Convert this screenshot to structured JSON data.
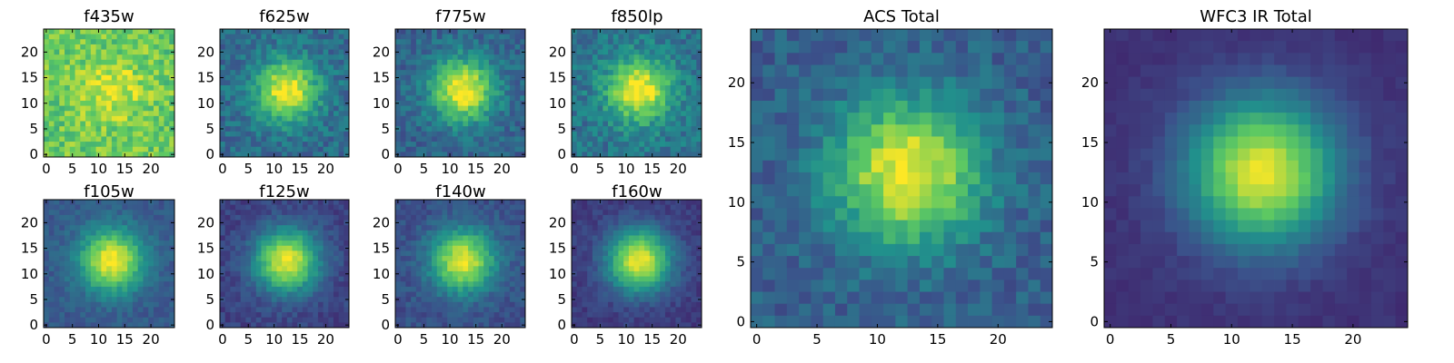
{
  "colormap": [
    "#440154",
    "#3b528b",
    "#21918c",
    "#5ec962",
    "#fde725"
  ],
  "chart_data": [
    {
      "type": "heatmap",
      "title": "f435w",
      "xticks": [
        "0",
        "5",
        "10",
        "15",
        "20"
      ],
      "yticks": [
        "0",
        "5",
        "10",
        "15",
        "20"
      ],
      "xlim": [
        0,
        25
      ],
      "ylim": [
        0,
        25
      ],
      "grid": false,
      "peak": 0.22,
      "noise": 0.28,
      "base": 0.75
    },
    {
      "type": "heatmap",
      "title": "f625w",
      "xticks": [
        "0",
        "5",
        "10",
        "15",
        "20"
      ],
      "yticks": [
        "0",
        "5",
        "10",
        "15",
        "20"
      ],
      "xlim": [
        0,
        25
      ],
      "ylim": [
        0,
        25
      ],
      "grid": false,
      "peak": 0.65,
      "noise": 0.22,
      "base": 0.35
    },
    {
      "type": "heatmap",
      "title": "f775w",
      "xticks": [
        "0",
        "5",
        "10",
        "15",
        "20"
      ],
      "yticks": [
        "0",
        "5",
        "10",
        "15",
        "20"
      ],
      "xlim": [
        0,
        25
      ],
      "ylim": [
        0,
        25
      ],
      "grid": false,
      "peak": 0.7,
      "noise": 0.2,
      "base": 0.32
    },
    {
      "type": "heatmap",
      "title": "f850lp",
      "xticks": [
        "0",
        "5",
        "10",
        "15",
        "20"
      ],
      "yticks": [
        "0",
        "5",
        "10",
        "15",
        "20"
      ],
      "xlim": [
        0,
        25
      ],
      "ylim": [
        0,
        25
      ],
      "grid": false,
      "peak": 0.65,
      "noise": 0.22,
      "base": 0.38
    },
    {
      "type": "heatmap",
      "title": "f105w",
      "xticks": [
        "0",
        "5",
        "10",
        "15",
        "20"
      ],
      "yticks": [
        "0",
        "5",
        "10",
        "15",
        "20"
      ],
      "xlim": [
        0,
        25
      ],
      "ylim": [
        0,
        25
      ],
      "grid": false,
      "peak": 0.72,
      "noise": 0.12,
      "base": 0.28
    },
    {
      "type": "heatmap",
      "title": "f125w",
      "xticks": [
        "0",
        "5",
        "10",
        "15",
        "20"
      ],
      "yticks": [
        "0",
        "5",
        "10",
        "15",
        "20"
      ],
      "xlim": [
        0,
        25
      ],
      "ylim": [
        0,
        25
      ],
      "grid": false,
      "peak": 0.78,
      "noise": 0.12,
      "base": 0.2
    },
    {
      "type": "heatmap",
      "title": "f140w",
      "xticks": [
        "0",
        "5",
        "10",
        "15",
        "20"
      ],
      "yticks": [
        "0",
        "5",
        "10",
        "15",
        "20"
      ],
      "xlim": [
        0,
        25
      ],
      "ylim": [
        0,
        25
      ],
      "grid": false,
      "peak": 0.72,
      "noise": 0.13,
      "base": 0.25
    },
    {
      "type": "heatmap",
      "title": "f160w",
      "xticks": [
        "0",
        "5",
        "10",
        "15",
        "20"
      ],
      "yticks": [
        "0",
        "5",
        "10",
        "15",
        "20"
      ],
      "xlim": [
        0,
        25
      ],
      "ylim": [
        0,
        25
      ],
      "grid": false,
      "peak": 0.8,
      "noise": 0.1,
      "base": 0.18
    },
    {
      "type": "heatmap",
      "title": "ACS Total",
      "xticks": [
        "0",
        "5",
        "10",
        "15",
        "20"
      ],
      "yticks": [
        "0",
        "5",
        "10",
        "15",
        "20"
      ],
      "xlim": [
        0,
        25
      ],
      "ylim": [
        0,
        25
      ],
      "grid": false,
      "peak": 0.7,
      "noise": 0.18,
      "base": 0.3
    },
    {
      "type": "heatmap",
      "title": "WFC3 IR Total",
      "xticks": [
        "0",
        "5",
        "10",
        "15",
        "20"
      ],
      "yticks": [
        "0",
        "5",
        "10",
        "15",
        "20"
      ],
      "xlim": [
        0,
        25
      ],
      "ylim": [
        0,
        25
      ],
      "grid": false,
      "peak": 0.82,
      "noise": 0.05,
      "base": 0.15
    }
  ]
}
